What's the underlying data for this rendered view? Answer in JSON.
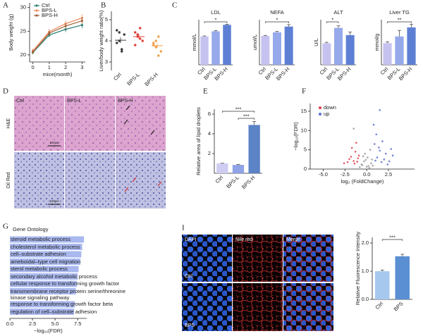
{
  "chart_data": [
    {
      "panel": "A",
      "type": "line",
      "xlabel": "mice(month)",
      "ylabel": "Body weight (g)",
      "x": [
        0,
        1,
        2,
        3
      ],
      "xlim": [
        -0.2,
        3.2
      ],
      "xticks": [
        0,
        1,
        2,
        3
      ],
      "ylim": [
        18.5,
        31
      ],
      "yticks": [
        20,
        25,
        30
      ],
      "legend": "upper left",
      "series": [
        {
          "name": "Ctrl",
          "color": "#2a7f72",
          "values": [
            20.5,
            24.2,
            25.4,
            26.3
          ],
          "errors": [
            0.4,
            0.5,
            0.6,
            0.7
          ]
        },
        {
          "name": "BPS-L",
          "color": "#f08a5d",
          "values": [
            20.9,
            24.9,
            26.6,
            27.8
          ],
          "errors": [
            0.4,
            0.6,
            0.7,
            0.8
          ]
        },
        {
          "name": "BPS-H",
          "color": "#a0623a",
          "values": [
            20.6,
            24.6,
            26.1,
            27.2
          ],
          "errors": [
            0.4,
            0.5,
            0.6,
            0.7
          ]
        }
      ]
    },
    {
      "panel": "B",
      "type": "dot",
      "ylabel": "Liver/body weight ratio(%)",
      "categories": [
        "Ctrl",
        "BPS-L",
        "BPS-H"
      ],
      "colors": [
        "#3a3a3a",
        "#e0403a",
        "#f0a04a"
      ],
      "points": [
        [
          4.5,
          4.4,
          3.5,
          4.3,
          3.9,
          4.0,
          3.6
        ],
        [
          4.4,
          4.2,
          4.6,
          4.0,
          3.8,
          4.3,
          4.1
        ],
        [
          3.9,
          3.7,
          4.2,
          3.5,
          3.8,
          4.0,
          3.3
        ]
      ],
      "means": [
        4.03,
        4.2,
        3.77
      ],
      "errors": [
        0.14,
        0.1,
        0.11
      ],
      "ylim": [
        2.6,
        5.4
      ],
      "yticks": [
        3,
        4,
        5
      ]
    },
    {
      "panel": "C",
      "type": "bar",
      "title": "LDL",
      "ylabel": "mmol/L",
      "categories": [
        "Ctrl",
        "BPS-L",
        "BPS-H"
      ],
      "values": [
        0.22,
        0.26,
        0.31
      ],
      "errors": [
        0.004,
        0.006,
        0.005
      ],
      "colors": [
        "#c6c2f0",
        "#96a9ea",
        "#5e80d4"
      ],
      "ylim": [
        0,
        0.35
      ],
      "brackets": [
        {
          "between": [
            "Ctrl",
            "BPS-H"
          ],
          "text": "*"
        }
      ]
    },
    {
      "type": "bar",
      "title": "NEFA",
      "ylabel": "umol/L",
      "categories": [
        "Ctrl",
        "BPS-L",
        "BPS-H"
      ],
      "values": [
        800,
        900,
        1060
      ],
      "errors": [
        15,
        25,
        55
      ],
      "colors": [
        "#c6c2f0",
        "#96a9ea",
        "#5e80d4"
      ],
      "ylim": [
        0,
        1250
      ],
      "brackets": [
        {
          "between": [
            "Ctrl",
            "BPS-H"
          ],
          "text": "*"
        }
      ]
    },
    {
      "type": "bar",
      "title": "ALT",
      "ylabel": "U/L",
      "categories": [
        "Ctrl",
        "BPS-L",
        "BPS-H"
      ],
      "values": [
        21,
        36,
        29
      ],
      "errors": [
        1,
        2,
        3
      ],
      "colors": [
        "#c6c2f0",
        "#96a9ea",
        "#5e80d4"
      ],
      "ylim": [
        0,
        44
      ],
      "brackets": [
        {
          "between": [
            "Ctrl",
            "BPS-L"
          ],
          "text": "*"
        }
      ]
    },
    {
      "type": "bar",
      "title": "Liver TG",
      "ylabel": "mmol/g",
      "categories": [
        "Ctrl",
        "BPS-L",
        "BPS-H"
      ],
      "values": [
        0.65,
        0.85,
        1.12
      ],
      "errors": [
        0.04,
        0.18,
        0.09
      ],
      "colors": [
        "#c6c2f0",
        "#96a9ea",
        "#5e80d4"
      ],
      "ylim": [
        0,
        1.35
      ],
      "brackets": [
        {
          "between": [
            "Ctrl",
            "BPS-H"
          ],
          "text": "**"
        }
      ]
    },
    {
      "panel": "E",
      "type": "bar",
      "ylabel": "Relative area of lipid droplets",
      "categories": [
        "Ctrl",
        "BPS-L",
        "BPS-H"
      ],
      "values": [
        1.0,
        0.85,
        4.9
      ],
      "errors": [
        0.02,
        0.05,
        0.35
      ],
      "colors": [
        "#cfccf2",
        "#8fa3e6",
        "#5b83c6"
      ],
      "ylim": [
        0,
        6.5
      ],
      "yticks": [
        2,
        4,
        6
      ],
      "brackets": [
        {
          "between": [
            "Ctrl",
            "BPS-H"
          ],
          "text": "***"
        },
        {
          "between": [
            "BPS-L",
            "BPS-H"
          ],
          "text": "***"
        }
      ]
    },
    {
      "panel": "F",
      "type": "scatter",
      "xlabel": "log₂ (FoldChange)",
      "ylabel": "−log₁₀(FDR)",
      "xlim": [
        -6.5,
        5.5
      ],
      "xticks": [
        {
          "value": -5,
          "label": "-5.0"
        },
        -2.5,
        {
          "value": 0,
          "label": "0.0"
        },
        2.5
      ],
      "ylim": [
        0,
        17
      ],
      "yticks": [
        0,
        5,
        10,
        15
      ],
      "legend": "upper left",
      "series": [
        {
          "color": "#9a9a9a",
          "x": [
            -0.5,
            0.2,
            -0.3,
            0.5,
            0.1,
            -0.8,
            0.3,
            -1.5,
            0.6,
            -0.2,
            0.4,
            -0.6,
            0.0,
            -0.1,
            0.7,
            -0.4
          ],
          "values": [
            1.0,
            0.8,
            2.0,
            1.5,
            3.0,
            0.5,
            0.3,
            10.5,
            2.5,
            4.0,
            5.0,
            1.2,
            0.6,
            2.4,
            0.9,
            3.3
          ]
        },
        {
          "name": "down",
          "color": "#e0404a",
          "x": [
            -1.8,
            -1.5,
            -2.2,
            -1.3,
            -1.0,
            -1.7,
            -2.6,
            -1.2,
            -0.9,
            -2.0,
            -1.4,
            -1.1
          ],
          "values": [
            3.2,
            2.1,
            1.8,
            4.5,
            2.8,
            5.5,
            1.5,
            6.8,
            3.5,
            2.6,
            1.4,
            1.9
          ]
        },
        {
          "name": "up",
          "color": "#5a6fd0",
          "x": [
            1.2,
            1.5,
            2.0,
            0.9,
            1.8,
            2.6,
            1.1,
            3.0,
            1.4,
            2.2,
            0.8,
            1.7,
            2.8,
            1.5,
            1.0,
            2.4
          ],
          "values": [
            3.0,
            4.8,
            2.5,
            6.5,
            7.2,
            2.0,
            9.0,
            3.5,
            5.6,
            4.0,
            11.5,
            1.8,
            5.2,
            15.3,
            2.2,
            1.2
          ]
        }
      ]
    },
    {
      "panel": "G",
      "type": "hbar",
      "title": "Gene Ontology",
      "xlabel": "−log₁₀(FDR)",
      "color": "#a9b8ee",
      "categories": [
        "steroid metabolic process",
        "cholesterol metabolic process",
        "cell–substrate adhesion",
        "ameboidal–type cell migration",
        "sterol metabolic process",
        "secondary alcohol metabolic process",
        "cellular response to transforming growth factor beta stimulus",
        "transmembrane receptor protein serine/threonine kinase signaling pathway",
        "response to transforming growth factor beta",
        "regulation of cell–substrate adhesion"
      ],
      "values": [
        8.2,
        8.0,
        7.9,
        7.8,
        7.6,
        7.5,
        7.4,
        7.3,
        7.2,
        7.1
      ],
      "xlim": [
        0,
        8.5
      ],
      "xticks": [
        {
          "value": 0,
          "label": "0.0"
        },
        2.5,
        {
          "value": 5,
          "label": "5.0"
        },
        7.5
      ]
    },
    {
      "type": "bar",
      "ylabel": "Relative Fluorescence Intensity",
      "categories": [
        "Ctrl",
        "BPS"
      ],
      "values": [
        1.0,
        1.53
      ],
      "errors": [
        0.04,
        0.07
      ],
      "colors": [
        "#a6c8ee",
        "#5b8fd3"
      ],
      "ylim": [
        0,
        2.2
      ],
      "yticks": [
        {
          "value": 0,
          "label": "0.0"
        },
        {
          "value": 1,
          "label": "1.0"
        },
        {
          "value": 2,
          "label": "2.0"
        }
      ],
      "brackets": [
        {
          "between": [
            "Ctrl",
            "BPS"
          ],
          "text": "***"
        }
      ]
    }
  ],
  "figures": [
    {
      "panel": "D",
      "columns": [
        "Ctrl",
        "BPS-L",
        "BPS-H"
      ],
      "rows": [
        "H&E",
        "Oil Red"
      ],
      "scale_bars": [
        "100μm",
        "100μm"
      ]
    },
    {
      "panel": "I",
      "columns": [
        "DAPI",
        "Nile red",
        "Merge"
      ],
      "rows": [
        "Ctrl",
        "BPS"
      ]
    }
  ]
}
